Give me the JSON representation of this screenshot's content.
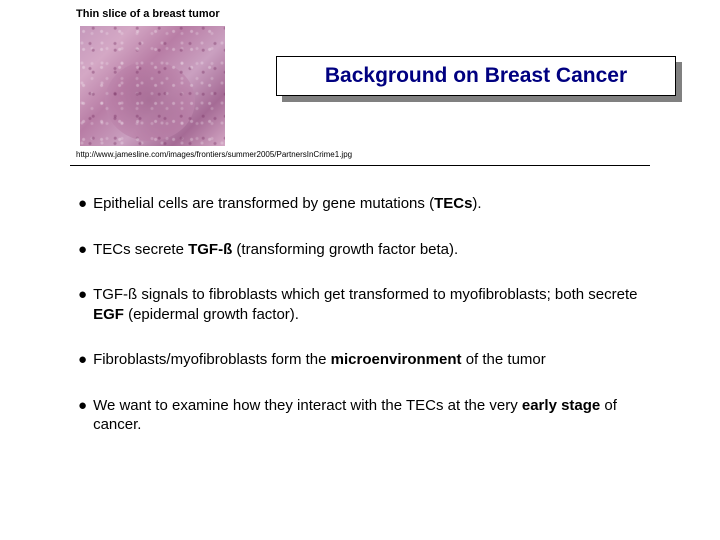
{
  "caption": "Thin slice of a breast tumor",
  "title": "Background on Breast Cancer",
  "citation": "http://www.jamesline.com/images/frontiers/summer2005/PartnersInCrime1.jpg",
  "bullets": [
    {
      "pre": "Epithelial cells are transformed by gene mutations (",
      "bold1": "TECs",
      "mid": ").",
      "bold2": "",
      "post": ""
    },
    {
      "pre": "TECs secrete ",
      "bold1": "TGF-ß",
      "mid": " (transforming growth factor beta).",
      "bold2": "",
      "post": ""
    },
    {
      "pre": "TGF-ß signals to fibroblasts which get transformed to myofibroblasts; both secrete ",
      "bold1": "EGF",
      "mid": " (epidermal growth factor).",
      "bold2": "",
      "post": ""
    },
    {
      "pre": "Fibroblasts/myofibroblasts form the ",
      "bold1": "microenvironment",
      "mid": " of the tumor",
      "bold2": "",
      "post": ""
    },
    {
      "pre": "We want to examine how they interact with the TECs at the very ",
      "bold1": "early stage",
      "mid": " of cancer.",
      "bold2": "",
      "post": ""
    }
  ],
  "colors": {
    "title_text": "#000080",
    "shadow": "#808080",
    "background": "#ffffff"
  }
}
